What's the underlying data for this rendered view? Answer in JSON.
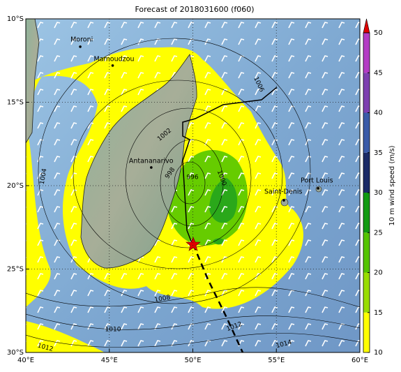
{
  "map": {
    "title": "Forecast of 2018031600 (f060)",
    "xlim": [
      40,
      60
    ],
    "ylim": [
      -30,
      -10
    ],
    "xticks": [
      {
        "value": 40,
        "label": "40°E"
      },
      {
        "value": 45,
        "label": "45°E"
      },
      {
        "value": 50,
        "label": "50°E"
      },
      {
        "value": 55,
        "label": "55°E"
      },
      {
        "value": 60,
        "label": "60°E"
      }
    ],
    "yticks": [
      {
        "value": -10,
        "label": "10°S"
      },
      {
        "value": -15,
        "label": "15°S"
      },
      {
        "value": -20,
        "label": "20°S"
      },
      {
        "value": -25,
        "label": "25°S"
      },
      {
        "value": -30,
        "label": "30°S"
      }
    ],
    "cities": [
      {
        "name": "Moroni",
        "lon": 43.26,
        "lat": -11.67
      },
      {
        "name": "Mamoudzou",
        "lon": 45.2,
        "lat": -12.8
      },
      {
        "name": "Antananarivo",
        "lon": 47.51,
        "lat": -18.91
      },
      {
        "name": "Saint-Denis",
        "lon": 55.45,
        "lat": -20.88
      },
      {
        "name": "Port Louis",
        "lon": 57.5,
        "lat": -20.16
      }
    ],
    "contour_labels": [
      {
        "value": 1006,
        "lon": 53.95,
        "lat": -13.93
      },
      {
        "value": 1002,
        "lon": 48.3,
        "lat": -16.95
      },
      {
        "value": 1004,
        "lon": 41.05,
        "lat": -19.45
      },
      {
        "value": 998,
        "lon": 48.64,
        "lat": -19.25
      },
      {
        "value": 996,
        "lon": 49.98,
        "lat": -19.5
      },
      {
        "value": 1000,
        "lon": 51.73,
        "lat": -19.54
      },
      {
        "value": 1008,
        "lon": 48.18,
        "lat": -26.78
      },
      {
        "value": 1010,
        "lon": 45.22,
        "lat": -28.62
      },
      {
        "value": 1012,
        "lon": 41.17,
        "lat": -29.7
      },
      {
        "value": 1012,
        "lon": 52.48,
        "lat": -28.45
      },
      {
        "value": 1014,
        "lon": 55.45,
        "lat": -29.5
      }
    ],
    "colorbar": {
      "label": "10 m wind speed (m/s)",
      "lim": [
        10,
        50
      ],
      "ticks": [
        10,
        15,
        20,
        25,
        30,
        35,
        40,
        45,
        50
      ],
      "colors": [
        "#ffff00",
        "#99dd00",
        "#55c400",
        "#119a11",
        "#1b2a66",
        "#3a5aa8",
        "#7d3fb0",
        "#b43cc4"
      ],
      "extend_color": "#e00000"
    }
  }
}
